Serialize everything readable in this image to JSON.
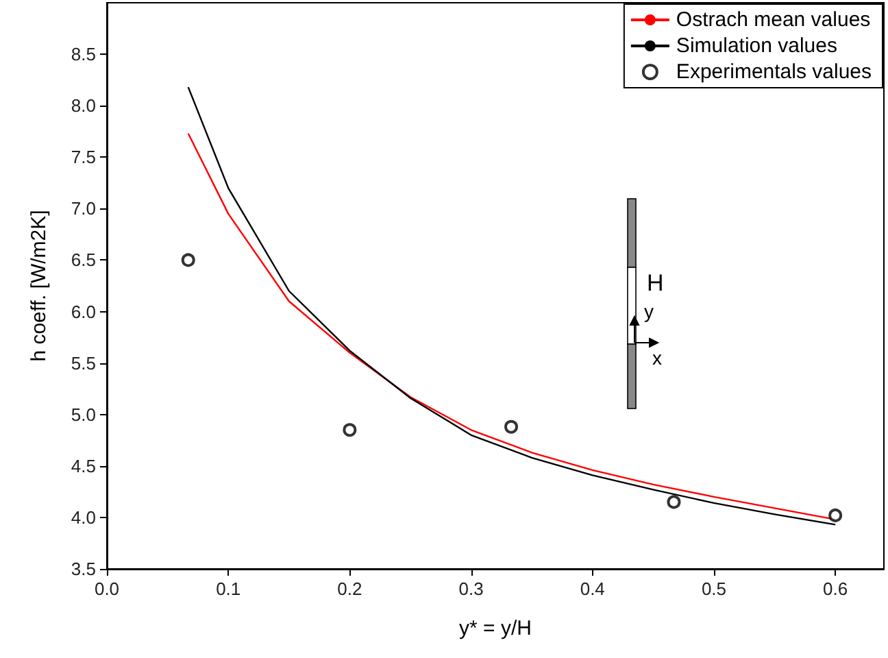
{
  "chart_data": {
    "type": "line",
    "xlabel": "y* = y/H",
    "ylabel": "h coeff. [W/m2K]",
    "xlim": [
      0,
      0.64
    ],
    "ylim": [
      3.5,
      9.0
    ],
    "xticks": [
      {
        "value": 0,
        "label": "0.0"
      },
      {
        "value": 0.1,
        "label": "0.1"
      },
      {
        "value": 0.2,
        "label": "0.2"
      },
      {
        "value": 0.3,
        "label": "0.3"
      },
      {
        "value": 0.4,
        "label": "0.4"
      },
      {
        "value": 0.5,
        "label": "0.5"
      },
      {
        "value": 0.6,
        "label": "0.6"
      }
    ],
    "yticks": [
      {
        "value": 3.5,
        "label": "3.5"
      },
      {
        "value": 4,
        "label": "4.0"
      },
      {
        "value": 4.5,
        "label": "4.5"
      },
      {
        "value": 5,
        "label": "5.0"
      },
      {
        "value": 5.5,
        "label": "5.5"
      },
      {
        "value": 6,
        "label": "6.0"
      },
      {
        "value": 6.5,
        "label": "6.5"
      },
      {
        "value": 7,
        "label": "7.0"
      },
      {
        "value": 7.5,
        "label": "7.5"
      },
      {
        "value": 8,
        "label": "8.0"
      },
      {
        "value": 8.5,
        "label": "8.5"
      }
    ],
    "grid": false,
    "legend": "top right",
    "series": [
      {
        "name": "Ostrach mean values",
        "color": "#ff0000",
        "marker": "none",
        "x": [
          0.067,
          0.1,
          0.15,
          0.2,
          0.25,
          0.3,
          0.35,
          0.4,
          0.45,
          0.5,
          0.55,
          0.6
        ],
        "values": [
          7.73,
          6.95,
          6.1,
          5.6,
          5.17,
          4.85,
          4.63,
          4.46,
          4.32,
          4.2,
          4.09,
          3.98
        ]
      },
      {
        "name": "Simulation values",
        "color": "#000000",
        "marker": "none",
        "x": [
          0.067,
          0.1,
          0.15,
          0.2,
          0.25,
          0.3,
          0.35,
          0.4,
          0.45,
          0.5,
          0.55,
          0.6
        ],
        "values": [
          8.18,
          7.2,
          6.2,
          5.62,
          5.16,
          4.8,
          4.58,
          4.41,
          4.27,
          4.14,
          4.03,
          3.93
        ]
      },
      {
        "name": "Experimentals values",
        "color": "#000000",
        "type": "scatter",
        "marker": "circle",
        "x": [
          0.067,
          0.2,
          0.333,
          0.467,
          0.6
        ],
        "values": [
          6.5,
          4.85,
          4.88,
          4.15,
          4.02
        ]
      }
    ],
    "annotations": [
      "H",
      "y",
      "x"
    ]
  }
}
